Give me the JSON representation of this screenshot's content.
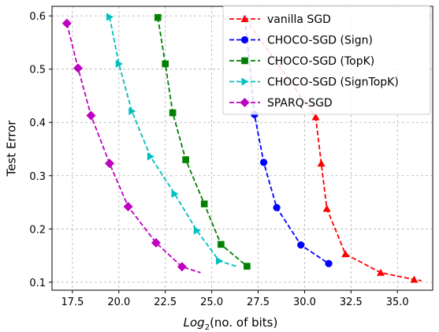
{
  "chart_data": {
    "type": "line",
    "xlabel_base": "Log",
    "xlabel_sub": "2",
    "xlabel_rest": "(no. of bits)",
    "ylabel": "Test Error",
    "xlim": [
      16.4,
      36.9
    ],
    "ylim": [
      0.085,
      0.618
    ],
    "xticks": [
      17.5,
      20.0,
      22.5,
      25.0,
      27.5,
      30.0,
      32.5,
      35.0
    ],
    "xtick_labels": [
      "17.5",
      "20.0",
      "22.5",
      "25.0",
      "27.5",
      "30.0",
      "32.5",
      "35.0"
    ],
    "yticks": [
      0.1,
      0.2,
      0.3,
      0.4,
      0.5,
      0.6
    ],
    "ytick_labels": [
      "0.1",
      "0.2",
      "0.3",
      "0.4",
      "0.5",
      "0.6"
    ],
    "grid": true,
    "legend_position": "top-right",
    "series": [
      {
        "name": "vanilla SGD",
        "color": "#ff0000",
        "marker": "triangle-up",
        "x": [
          26.8,
          30.6,
          30.9,
          31.2,
          32.2,
          34.1,
          35.9,
          36.3
        ],
        "y": [
          0.595,
          0.41,
          0.323,
          0.238,
          0.153,
          0.118,
          0.105,
          0.103
        ]
      },
      {
        "name": "CHOCO-SGD (Sign)",
        "color": "#0000ff",
        "marker": "circle",
        "x": [
          26.8,
          27.3,
          27.8,
          28.5,
          29.8,
          31.3
        ],
        "y": [
          0.595,
          0.415,
          0.325,
          0.24,
          0.17,
          0.135
        ]
      },
      {
        "name": "CHOCO-SGD (TopK)",
        "color": "#008000",
        "marker": "square",
        "x": [
          22.1,
          22.5,
          22.9,
          23.6,
          24.6,
          25.5,
          26.9,
          27.2
        ],
        "y": [
          0.597,
          0.51,
          0.418,
          0.33,
          0.247,
          0.171,
          0.13,
          0.127
        ]
      },
      {
        "name": "CHOCO-SGD (SignTopK)",
        "color": "#00bfbf",
        "marker": "triangle-right",
        "x": [
          19.5,
          20.0,
          20.7,
          21.7,
          23.0,
          24.2,
          25.4,
          26.3
        ],
        "y": [
          0.598,
          0.51,
          0.421,
          0.336,
          0.266,
          0.197,
          0.14,
          0.13
        ]
      },
      {
        "name": "SPARQ-SGD",
        "color": "#bf00bf",
        "marker": "diamond",
        "x": [
          17.2,
          17.8,
          18.5,
          19.5,
          20.5,
          22.0,
          23.4,
          24.4
        ],
        "y": [
          0.586,
          0.502,
          0.413,
          0.323,
          0.242,
          0.174,
          0.129,
          0.118
        ]
      }
    ],
    "marker_points": {
      "vanilla SGD": [
        0,
        1,
        2,
        3,
        4,
        5,
        6
      ],
      "CHOCO-SGD (Sign)": [
        0,
        1,
        2,
        3,
        4,
        5
      ],
      "CHOCO-SGD (TopK)": [
        0,
        1,
        2,
        3,
        4,
        5,
        6
      ],
      "CHOCO-SGD (SignTopK)": [
        0,
        1,
        2,
        3,
        4,
        5,
        6
      ],
      "SPARQ-SGD": [
        0,
        1,
        2,
        3,
        4,
        5,
        6
      ]
    }
  }
}
